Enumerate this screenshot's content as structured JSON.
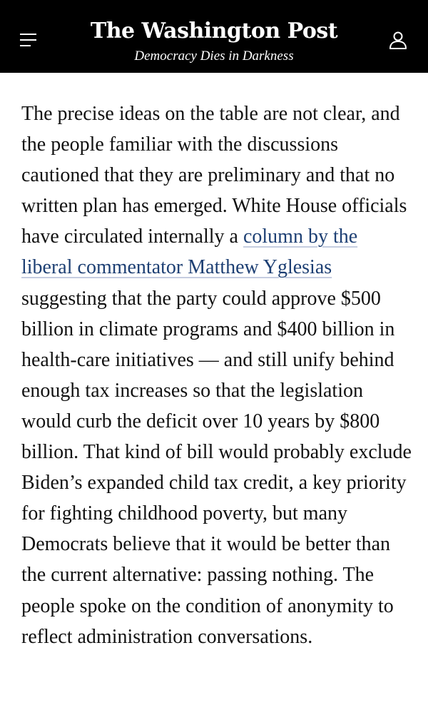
{
  "header": {
    "title": "The Washington Post",
    "tagline": "Democracy Dies in Darkness",
    "menu_icon": "hamburger-menu-icon",
    "account_icon": "user-account-icon"
  },
  "article": {
    "text_before_link": "The precise ideas on the table are not clear, and the people familiar with the discussions cautioned that they are preliminary and that no written plan has emerged. White House officials have circulated internally a ",
    "link_text": "column by the liberal commentator Matthew Yglesias",
    "text_after_link": " suggesting that the party could approve $500 billion in climate programs and $400 billion in health-care initiatives — and still unify behind enough tax increases so that the legislation would curb the deficit over 10 years by $800 billion. That kind of bill would probably exclude Biden’s expanded child tax credit, a key priority for fighting childhood poverty, but many Democrats believe that it would be better than the current alternative: passing nothing. The people spoke on the condition of anonymity to reflect administration conversations."
  },
  "colors": {
    "header_background": "#000000",
    "header_text": "#ffffff",
    "body_text": "#111111",
    "link": "#1d3f73"
  }
}
